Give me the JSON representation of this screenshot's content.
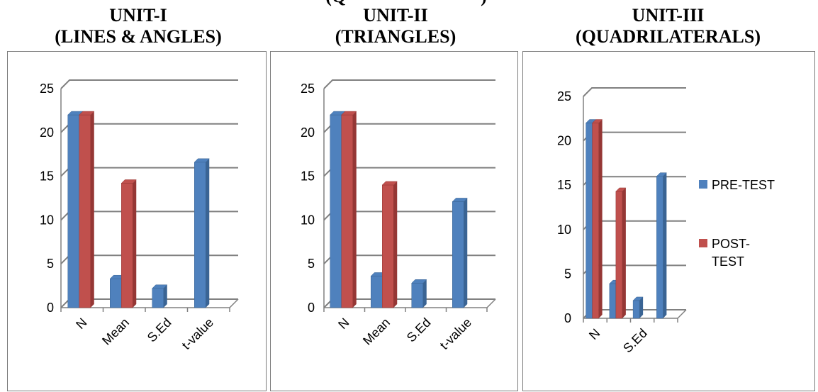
{
  "top_cut_title": "(Q",
  "top_cut_title_right": ")",
  "colors": {
    "pre": "#4f81bd",
    "pre_side": "#3a6494",
    "post": "#c0504d",
    "post_side": "#953735",
    "grid": "#808080"
  },
  "legend": {
    "pre_label": "PRE-TEST",
    "post_label_1": "POST-",
    "post_label_2": "TEST"
  },
  "chart_data": [
    {
      "type": "bar",
      "title_line1": "UNIT-I",
      "title_line2": "(LINES & ANGLES)",
      "categories": [
        "N",
        "Mean",
        "S.Ed",
        "t-value"
      ],
      "series": [
        {
          "name": "PRE-TEST",
          "values": [
            22,
            3.3,
            2.2,
            16.6
          ]
        },
        {
          "name": "POST-TEST",
          "values": [
            22,
            14.2,
            null,
            null
          ]
        }
      ],
      "ylim": [
        0,
        25
      ],
      "yticks": [
        "0",
        "5",
        "10",
        "15",
        "20",
        "25"
      ],
      "grid": true
    },
    {
      "type": "bar",
      "title_line1": "UNIT-II",
      "title_line2": "(TRIANGLES)",
      "categories": [
        "N",
        "Mean",
        "S.Ed",
        "t-value"
      ],
      "series": [
        {
          "name": "PRE-TEST",
          "values": [
            22,
            3.6,
            2.8,
            12.1
          ]
        },
        {
          "name": "POST-TEST",
          "values": [
            22,
            14,
            null,
            null
          ]
        }
      ],
      "ylim": [
        0,
        25
      ],
      "yticks": [
        "0",
        "5",
        "10",
        "15",
        "20",
        "25"
      ],
      "grid": true
    },
    {
      "type": "bar",
      "title_line1": "UNIT-III",
      "title_line2": "(QUADRILATERALS)",
      "categories": [
        "N",
        "",
        "S.Ed",
        ""
      ],
      "series": [
        {
          "name": "PRE-TEST",
          "values": [
            22,
            3.9,
            2,
            16
          ]
        },
        {
          "name": "POST-TEST",
          "values": [
            22,
            14.3,
            null,
            null
          ]
        }
      ],
      "ylim": [
        0,
        25
      ],
      "yticks": [
        "0",
        "5",
        "10",
        "15",
        "20",
        "25"
      ],
      "grid": true,
      "legend_position": "right"
    }
  ]
}
